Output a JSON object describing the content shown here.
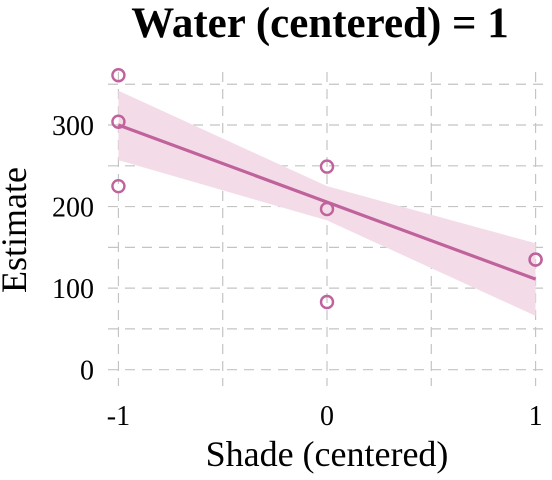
{
  "chart_data": {
    "type": "scatter",
    "title": "Water (centered) = 1",
    "xlabel": "Shade (centered)",
    "ylabel": "Estimate",
    "xlim": [
      -1.05,
      1.05
    ],
    "ylim": [
      -20,
      365
    ],
    "x_ticks": [
      -1,
      0,
      1
    ],
    "x_tick_labels": [
      "-1",
      "0",
      "1"
    ],
    "y_ticks": [
      0,
      100,
      200,
      300
    ],
    "y_tick_labels": [
      "0",
      "100",
      "200",
      "300"
    ],
    "x_minor_grid": [
      -0.5,
      0.5
    ],
    "y_minor_grid": [
      50,
      150,
      250,
      350
    ],
    "grid": true,
    "points": [
      {
        "x": -1,
        "y": 361
      },
      {
        "x": -1,
        "y": 304
      },
      {
        "x": -1,
        "y": 225
      },
      {
        "x": 0,
        "y": 249
      },
      {
        "x": 0,
        "y": 197
      },
      {
        "x": 0,
        "y": 83
      },
      {
        "x": 1,
        "y": 135
      },
      {
        "x": 1,
        "y": 135
      }
    ],
    "fit_line": {
      "x": [
        -1,
        1
      ],
      "y": [
        300,
        111
      ]
    },
    "band": {
      "x": [
        -1,
        0,
        1
      ],
      "lower": [
        257,
        183,
        66
      ],
      "upper": [
        342,
        225,
        155
      ]
    },
    "color": "#c0629b",
    "band_color": "#f3dce8"
  }
}
